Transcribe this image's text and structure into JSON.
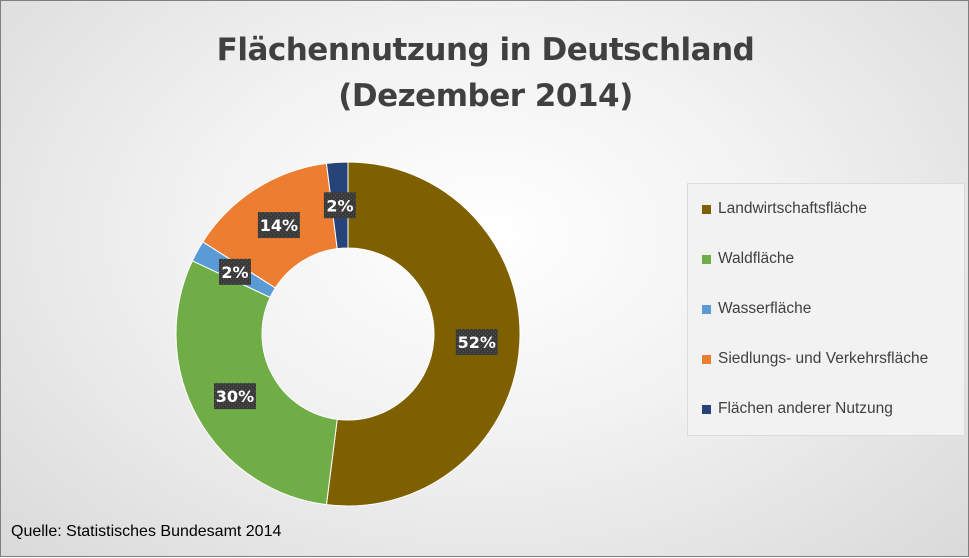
{
  "chart_data": {
    "type": "pie",
    "variant": "doughnut",
    "title": "Flächennutzung in Deutschland",
    "subtitle": "(Dezember 2014)",
    "categories": [
      "Landwirtschaftsfläche",
      "Waldfläche",
      "Wasserfläche",
      "Siedlungs- und Verkehrsfläche",
      "Flächen anderer Nutzung"
    ],
    "values": [
      52,
      30,
      2,
      14,
      2
    ],
    "data_labels": [
      "52%",
      "30%",
      "2%",
      "14%",
      "2%"
    ],
    "colors": [
      "#7f6000",
      "#70ad47",
      "#5b9bd5",
      "#ed7d31",
      "#264478"
    ],
    "legend_position": "right",
    "source": "Quelle: Statistisches Bundesamt 2014"
  }
}
